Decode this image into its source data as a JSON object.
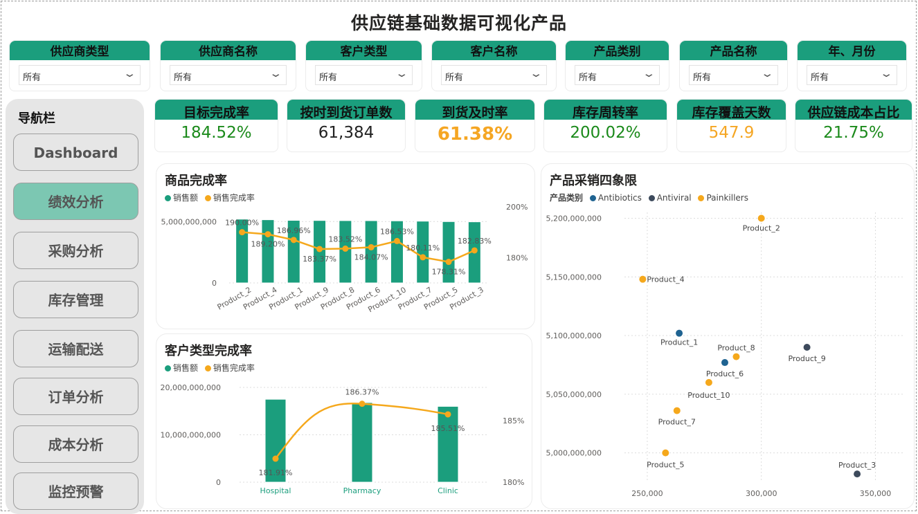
{
  "title": "供应链基础数据可视化产品",
  "filters": [
    {
      "label": "供应商类型",
      "value": "所有"
    },
    {
      "label": "供应商名称",
      "value": "所有"
    },
    {
      "label": "客户类型",
      "value": "所有"
    },
    {
      "label": "客户名称",
      "value": "所有"
    },
    {
      "label": "产品类别",
      "value": "所有"
    },
    {
      "label": "产品名称",
      "value": "所有"
    },
    {
      "label": "年、月份",
      "value": "所有"
    }
  ],
  "nav": {
    "title": "导航栏",
    "items": [
      {
        "label": "Dashboard",
        "active": false
      },
      {
        "label": "绩效分析",
        "active": true
      },
      {
        "label": "采购分析",
        "active": false
      },
      {
        "label": "库存管理",
        "active": false
      },
      {
        "label": "运输配送",
        "active": false
      },
      {
        "label": "订单分析",
        "active": false
      },
      {
        "label": "成本分析",
        "active": false
      },
      {
        "label": "监控预警",
        "active": false
      }
    ]
  },
  "kpis": [
    {
      "label": "目标完成率",
      "value": "184.52%"
    },
    {
      "label": "按时到货订单数",
      "value": "61,384"
    },
    {
      "label": "到货及时率",
      "value": "61.38%"
    },
    {
      "label": "库存周转率",
      "value": "200.02%"
    },
    {
      "label": "库存覆盖天数",
      "value": "547.9"
    },
    {
      "label": "供应链成本占比",
      "value": "21.75%"
    }
  ],
  "colors": {
    "accent": "#1b9e7d",
    "line": "#f5a81c",
    "antibiotics": "#1f6391",
    "antiviral": "#3d4a5c",
    "painkillers": "#f5a81c"
  },
  "chart_data": [
    {
      "type": "bar",
      "title": "商品完成率",
      "legend": [
        "销售额",
        "销售完成率"
      ],
      "categories": [
        "Product_2",
        "Product_4",
        "Product_1",
        "Product_9",
        "Product_8",
        "Product_6",
        "Product_10",
        "Product_7",
        "Product_5",
        "Product_3"
      ],
      "series": [
        {
          "name": "销售额",
          "values": [
            5200000000,
            5150000000,
            5100000000,
            5090000000,
            5080000000,
            5075000000,
            5060000000,
            5035000000,
            5000000000,
            4980000000
          ]
        },
        {
          "name": "销售完成率",
          "values": [
            190.0,
            189.2,
            186.96,
            183.37,
            183.52,
            184.07,
            186.53,
            180.11,
            178.31,
            182.83
          ],
          "labels": [
            "190.00%",
            "189.20%",
            "186.96%",
            "183.37%",
            "183.52%",
            "184.07%",
            "186.53%",
            "180.11%",
            "178.31%",
            "182.83%"
          ]
        }
      ],
      "y_ticks": [
        "5,000,000,000",
        "0"
      ],
      "y2_ticks": [
        "200%",
        "180%"
      ],
      "ylim": [
        0,
        6200000000
      ],
      "y2lim": [
        170,
        200
      ]
    },
    {
      "type": "bar",
      "title": "客户类型完成率",
      "legend": [
        "销售额",
        "销售完成率"
      ],
      "categories": [
        "Hospital",
        "Pharmacy",
        "Clinic"
      ],
      "series": [
        {
          "name": "销售额",
          "values": [
            17500000000,
            16800000000,
            16000000000
          ]
        },
        {
          "name": "销售完成率",
          "values": [
            181.91,
            186.37,
            185.51
          ],
          "labels": [
            "181.91%",
            "186.37%",
            "185.51%"
          ]
        }
      ],
      "y_ticks": [
        "20,000,000,000",
        "10,000,000,000",
        "0"
      ],
      "y2_ticks": [
        "185%",
        "180%"
      ],
      "ylim": [
        0,
        20000000000
      ],
      "y2lim": [
        180,
        187.7
      ]
    },
    {
      "type": "scatter",
      "title": "产品采销四象限",
      "legend_title": "产品类别",
      "legend": [
        "Antibiotics",
        "Antiviral",
        "Painkillers"
      ],
      "points": [
        {
          "label": "Product_2",
          "x": 300000,
          "y": 5200000000,
          "cat": "Painkillers"
        },
        {
          "label": "Product_4",
          "x": 248000,
          "y": 5148000000,
          "cat": "Painkillers"
        },
        {
          "label": "Product_1",
          "x": 264000,
          "y": 5102000000,
          "cat": "Antibiotics"
        },
        {
          "label": "Product_9",
          "x": 320000,
          "y": 5090000000,
          "cat": "Antiviral"
        },
        {
          "label": "Product_8",
          "x": 289000,
          "y": 5082000000,
          "cat": "Painkillers"
        },
        {
          "label": "Product_6",
          "x": 284000,
          "y": 5077000000,
          "cat": "Antibiotics"
        },
        {
          "label": "Product_10",
          "x": 277000,
          "y": 5060000000,
          "cat": "Painkillers"
        },
        {
          "label": "Product_7",
          "x": 263000,
          "y": 5036000000,
          "cat": "Painkillers"
        },
        {
          "label": "Product_5",
          "x": 258000,
          "y": 5000000000,
          "cat": "Painkillers"
        },
        {
          "label": "Product_3",
          "x": 342000,
          "y": 4982000000,
          "cat": "Antiviral"
        }
      ],
      "x_ticks": [
        "250,000",
        "300,000",
        "350,000"
      ],
      "y_ticks": [
        "5,200,000,000",
        "5,150,000,000",
        "5,100,000,000",
        "5,050,000,000",
        "5,000,000,000"
      ],
      "xlim": [
        240000,
        362000
      ],
      "ylim": [
        4975000000,
        5205000000
      ]
    }
  ]
}
